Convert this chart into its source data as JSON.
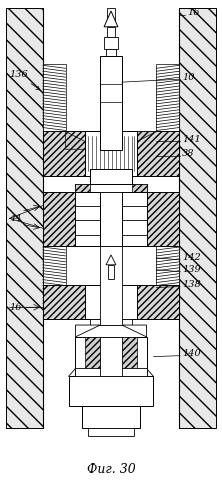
{
  "title": "Фиг. 30",
  "bg_color": "#ffffff",
  "fig_width": 2.22,
  "fig_height": 4.98,
  "dpi": 100
}
